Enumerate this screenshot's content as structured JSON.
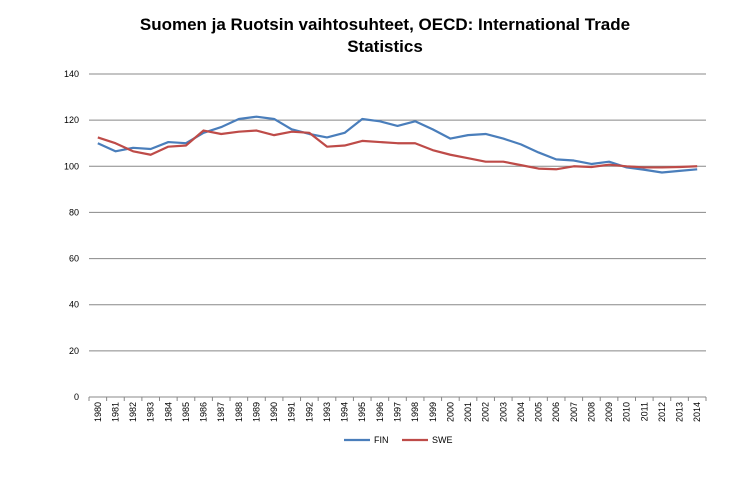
{
  "chart_data": {
    "type": "line",
    "title": "Suomen ja Ruotsin vaihtosuhteet, OECD: International Trade Statistics",
    "title_lines": [
      "Suomen ja Ruotsin vaihtosuhteet, OECD: International Trade",
      "Statistics"
    ],
    "xlabel": "",
    "ylabel": "",
    "ylim": [
      0,
      140
    ],
    "yticks": [
      0,
      20,
      40,
      60,
      80,
      100,
      120,
      140
    ],
    "grid": true,
    "legend": "bottom",
    "x": [
      1980,
      1981,
      1982,
      1983,
      1984,
      1985,
      1986,
      1987,
      1988,
      1989,
      1990,
      1991,
      1992,
      1993,
      1994,
      1995,
      1996,
      1997,
      1998,
      1999,
      2000,
      2001,
      2002,
      2003,
      2004,
      2005,
      2006,
      2007,
      2008,
      2009,
      2010,
      2011,
      2012,
      2013,
      2014
    ],
    "series": [
      {
        "name": "FIN",
        "color": "#4a7ebb",
        "values": [
          110,
          106.5,
          108,
          107.5,
          110.5,
          110,
          114.5,
          117,
          120.5,
          121.5,
          120.5,
          116,
          114,
          112.5,
          114.5,
          120.5,
          119.5,
          117.5,
          119.5,
          116,
          112,
          113.5,
          114,
          112,
          109.5,
          106,
          103,
          102.5,
          101,
          102,
          99.5,
          98.5,
          97.3,
          98,
          98.7
        ]
      },
      {
        "name": "SWE",
        "color": "#be4b48",
        "values": [
          112.5,
          110,
          106.5,
          105,
          108.5,
          109,
          115.5,
          114,
          115,
          115.5,
          113.5,
          115,
          114.5,
          108.5,
          109,
          111,
          110.5,
          110,
          110,
          107,
          105,
          103.5,
          102,
          102,
          100.5,
          99,
          98.7,
          100,
          99.7,
          100.7,
          100,
          99.5,
          99.5,
          99.7,
          100
        ]
      }
    ]
  }
}
